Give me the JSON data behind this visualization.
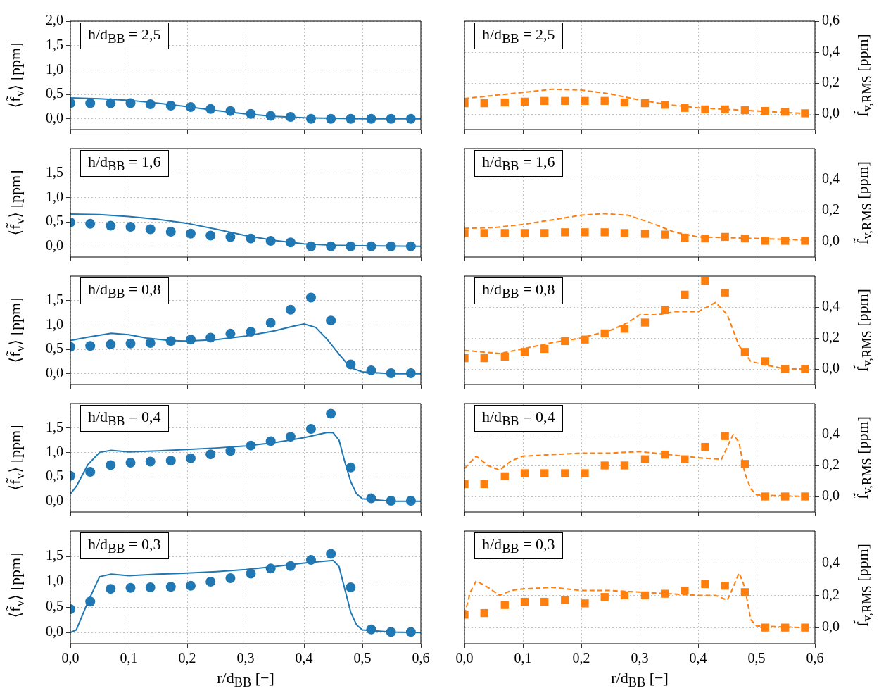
{
  "chart_data": [
    {
      "type": "scatter",
      "ylabel": "⟨f̃$_{v}$⟩ [ppm]",
      "annotations": [
        "h/d$_{BB}$ = 2,5"
      ],
      "xlim": [
        0,
        0.6
      ],
      "xticks": [
        {
          "value": 0,
          "label": null
        },
        {
          "value": 0.1,
          "label": null
        },
        {
          "value": 0.2,
          "label": null
        },
        {
          "value": 0.3,
          "label": null
        },
        {
          "value": 0.4,
          "label": null
        },
        {
          "value": 0.5,
          "label": null
        },
        {
          "value": 0.6,
          "label": null
        }
      ],
      "ylim": [
        -0.22,
        2.0
      ],
      "yticks": [
        {
          "value": 0,
          "label": "0,0"
        },
        {
          "value": 0.5,
          "label": "0,5"
        },
        {
          "value": 1,
          "label": "1,0"
        },
        {
          "value": 1.5,
          "label": "1,5"
        },
        {
          "value": 2,
          "label": "2,0"
        }
      ],
      "tick_labels": "y",
      "grid": true,
      "x": [
        0,
        0.034,
        0.069,
        0.103,
        0.137,
        0.172,
        0.206,
        0.24,
        0.274,
        0.309,
        0.343,
        0.377,
        0.412,
        0.446,
        0.48,
        0.515,
        0.549,
        0.583
      ],
      "series": [
        {
          "type": "scatter",
          "marker": "circle",
          "color": "#1f77b4",
          "values": [
            0.32,
            0.32,
            0.32,
            0.32,
            0.3,
            0.27,
            0.24,
            0.2,
            0.16,
            0.1,
            0.06,
            0.04,
            0,
            0,
            0,
            0,
            0,
            0
          ]
        },
        {
          "type": "line",
          "line_style": "solid",
          "color": "#1f77b4",
          "x": [
            0,
            0.05,
            0.1,
            0.15,
            0.2,
            0.25,
            0.3,
            0.35,
            0.4,
            0.45,
            0.5,
            0.6
          ],
          "values": [
            0.43,
            0.41,
            0.38,
            0.32,
            0.25,
            0.17,
            0.1,
            0.05,
            0.02,
            0.01,
            0,
            0
          ]
        }
      ]
    },
    {
      "type": "scatter",
      "y2label": "f̃$_{v,RMS}$ [ppm]",
      "annotations": [
        "h/d$_{BB}$ = 2,5"
      ],
      "xlim": [
        0,
        0.6
      ],
      "xticks": [
        {
          "value": 0,
          "label": null
        },
        {
          "value": 0.1,
          "label": null
        },
        {
          "value": 0.2,
          "label": null
        },
        {
          "value": 0.3,
          "label": null
        },
        {
          "value": 0.4,
          "label": null
        },
        {
          "value": 0.5,
          "label": null
        },
        {
          "value": 0.6,
          "label": null
        }
      ],
      "y2lim": [
        -0.1,
        0.6
      ],
      "y2ticks": [
        {
          "value": 0,
          "label": "0,0"
        },
        {
          "value": 0.2,
          "label": "0,2"
        },
        {
          "value": 0.4,
          "label": "0,4"
        },
        {
          "value": 0.6,
          "label": "0,6"
        }
      ],
      "tick_labels": "y",
      "grid": true,
      "x": [
        0,
        0.034,
        0.069,
        0.103,
        0.137,
        0.172,
        0.206,
        0.24,
        0.274,
        0.309,
        0.343,
        0.377,
        0.412,
        0.446,
        0.48,
        0.515,
        0.549,
        0.583
      ],
      "series": [
        {
          "type": "scatter",
          "axis": "y2",
          "marker": "square",
          "color": "#ff7f0e",
          "values": [
            0.07,
            0.07,
            0.075,
            0.08,
            0.085,
            0.085,
            0.085,
            0.085,
            0.075,
            0.07,
            0.06,
            0.04,
            0.03,
            0.03,
            0.025,
            0.02,
            0.015,
            0.005
          ]
        },
        {
          "type": "line",
          "axis": "y2",
          "line_style": "dashed",
          "color": "#ff7f0e",
          "x": [
            0,
            0.05,
            0.1,
            0.15,
            0.2,
            0.25,
            0.3,
            0.35,
            0.4,
            0.45,
            0.5,
            0.55,
            0.58
          ],
          "values": [
            0.1,
            0.12,
            0.14,
            0.16,
            0.155,
            0.13,
            0.09,
            0.06,
            0.04,
            0.03,
            0.02,
            0.01,
            0.005
          ]
        }
      ]
    },
    {
      "type": "scatter",
      "ylabel": "⟨f̃$_{v}$⟩ [ppm]",
      "annotations": [
        "h/d$_{BB}$ = 1,6"
      ],
      "xlim": [
        0,
        0.6
      ],
      "xticks": [
        {
          "value": 0,
          "label": null
        },
        {
          "value": 0.1,
          "label": null
        },
        {
          "value": 0.2,
          "label": null
        },
        {
          "value": 0.3,
          "label": null
        },
        {
          "value": 0.4,
          "label": null
        },
        {
          "value": 0.5,
          "label": null
        },
        {
          "value": 0.6,
          "label": null
        }
      ],
      "ylim": [
        -0.22,
        2.0
      ],
      "yticks": [
        {
          "value": 0,
          "label": "0,0"
        },
        {
          "value": 0.5,
          "label": "0,5"
        },
        {
          "value": 1,
          "label": "1,0"
        },
        {
          "value": 1.5,
          "label": "1,5"
        }
      ],
      "tick_labels": "y",
      "grid": true,
      "x": [
        0,
        0.034,
        0.069,
        0.103,
        0.137,
        0.172,
        0.206,
        0.24,
        0.274,
        0.309,
        0.343,
        0.377,
        0.412,
        0.446,
        0.48,
        0.515,
        0.549,
        0.583
      ],
      "series": [
        {
          "type": "scatter",
          "marker": "circle",
          "color": "#1f77b4",
          "values": [
            0.49,
            0.46,
            0.42,
            0.4,
            0.35,
            0.3,
            0.26,
            0.22,
            0.19,
            0.16,
            0.11,
            0.08,
            0,
            0,
            0,
            0,
            0,
            0
          ]
        },
        {
          "type": "line",
          "line_style": "solid",
          "color": "#1f77b4",
          "x": [
            0,
            0.05,
            0.1,
            0.15,
            0.2,
            0.25,
            0.3,
            0.35,
            0.4,
            0.45,
            0.5,
            0.6
          ],
          "values": [
            0.66,
            0.65,
            0.61,
            0.55,
            0.47,
            0.35,
            0.22,
            0.12,
            0.05,
            0.02,
            0.01,
            0
          ]
        }
      ]
    },
    {
      "type": "scatter",
      "y2label": "f̃$_{v,RMS}$ [ppm]",
      "annotations": [
        "h/d$_{BB}$ = 1,6"
      ],
      "xlim": [
        0,
        0.6
      ],
      "xticks": [
        {
          "value": 0,
          "label": null
        },
        {
          "value": 0.1,
          "label": null
        },
        {
          "value": 0.2,
          "label": null
        },
        {
          "value": 0.3,
          "label": null
        },
        {
          "value": 0.4,
          "label": null
        },
        {
          "value": 0.5,
          "label": null
        },
        {
          "value": 0.6,
          "label": null
        }
      ],
      "y2lim": [
        -0.1,
        0.6
      ],
      "y2ticks": [
        {
          "value": 0,
          "label": "0,0"
        },
        {
          "value": 0.2,
          "label": "0,2"
        },
        {
          "value": 0.4,
          "label": "0,4"
        }
      ],
      "tick_labels": "y",
      "grid": true,
      "x": [
        0,
        0.034,
        0.069,
        0.103,
        0.137,
        0.172,
        0.206,
        0.24,
        0.274,
        0.309,
        0.343,
        0.377,
        0.412,
        0.446,
        0.48,
        0.515,
        0.549,
        0.583
      ],
      "series": [
        {
          "type": "scatter",
          "axis": "y2",
          "marker": "square",
          "color": "#ff7f0e",
          "values": [
            0.055,
            0.055,
            0.055,
            0.055,
            0.055,
            0.06,
            0.06,
            0.06,
            0.055,
            0.05,
            0.045,
            0.025,
            0.02,
            0.03,
            0.02,
            0.005,
            0.005,
            0.005
          ]
        },
        {
          "type": "line",
          "axis": "y2",
          "line_style": "dashed",
          "color": "#ff7f0e",
          "x": [
            0,
            0.05,
            0.1,
            0.15,
            0.2,
            0.24,
            0.28,
            0.32,
            0.36,
            0.4,
            0.5,
            0.58
          ],
          "values": [
            0.085,
            0.09,
            0.11,
            0.14,
            0.17,
            0.18,
            0.17,
            0.12,
            0.06,
            0.03,
            0.02,
            0.01
          ]
        }
      ]
    },
    {
      "type": "scatter",
      "ylabel": "⟨f̃$_{v}$⟩ [ppm]",
      "annotations": [
        "h/d$_{BB}$ = 0,8"
      ],
      "xlim": [
        0,
        0.6
      ],
      "xticks": [
        {
          "value": 0,
          "label": null
        },
        {
          "value": 0.1,
          "label": null
        },
        {
          "value": 0.2,
          "label": null
        },
        {
          "value": 0.3,
          "label": null
        },
        {
          "value": 0.4,
          "label": null
        },
        {
          "value": 0.5,
          "label": null
        },
        {
          "value": 0.6,
          "label": null
        }
      ],
      "ylim": [
        -0.22,
        2.0
      ],
      "yticks": [
        {
          "value": 0,
          "label": "0,0"
        },
        {
          "value": 0.5,
          "label": "0,5"
        },
        {
          "value": 1,
          "label": "1,0"
        },
        {
          "value": 1.5,
          "label": "1,5"
        }
      ],
      "tick_labels": "y",
      "grid": true,
      "x": [
        0,
        0.034,
        0.069,
        0.103,
        0.137,
        0.172,
        0.206,
        0.24,
        0.274,
        0.309,
        0.343,
        0.377,
        0.412,
        0.446,
        0.48,
        0.515,
        0.549,
        0.583
      ],
      "series": [
        {
          "type": "scatter",
          "marker": "circle",
          "color": "#1f77b4",
          "values": [
            0.55,
            0.57,
            0.6,
            0.62,
            0.63,
            0.67,
            0.7,
            0.74,
            0.82,
            0.86,
            1.04,
            1.31,
            1.56,
            1.09,
            0.19,
            0.07,
            0.01,
            0.01
          ]
        },
        {
          "type": "line",
          "line_style": "solid",
          "color": "#1f77b4",
          "x": [
            0,
            0.03,
            0.07,
            0.1,
            0.13,
            0.17,
            0.2,
            0.25,
            0.3,
            0.35,
            0.38,
            0.4,
            0.42,
            0.44,
            0.46,
            0.48,
            0.5,
            0.55,
            0.6
          ],
          "values": [
            0.68,
            0.75,
            0.83,
            0.8,
            0.73,
            0.68,
            0.67,
            0.7,
            0.77,
            0.88,
            0.97,
            1.02,
            0.95,
            0.7,
            0.4,
            0.12,
            0.04,
            0,
            0
          ]
        }
      ]
    },
    {
      "type": "scatter",
      "y2label": "f̃$_{v,RMS}$ [ppm]",
      "annotations": [
        "h/d$_{BB}$ = 0,8"
      ],
      "xlim": [
        0,
        0.6
      ],
      "xticks": [
        {
          "value": 0,
          "label": null
        },
        {
          "value": 0.1,
          "label": null
        },
        {
          "value": 0.2,
          "label": null
        },
        {
          "value": 0.3,
          "label": null
        },
        {
          "value": 0.4,
          "label": null
        },
        {
          "value": 0.5,
          "label": null
        },
        {
          "value": 0.6,
          "label": null
        }
      ],
      "y2lim": [
        -0.1,
        0.6
      ],
      "y2ticks": [
        {
          "value": 0,
          "label": "0,0"
        },
        {
          "value": 0.2,
          "label": "0,2"
        },
        {
          "value": 0.4,
          "label": "0,4"
        }
      ],
      "tick_labels": "y",
      "grid": true,
      "x": [
        0,
        0.034,
        0.069,
        0.103,
        0.137,
        0.172,
        0.206,
        0.24,
        0.274,
        0.309,
        0.343,
        0.377,
        0.412,
        0.446,
        0.48,
        0.515,
        0.549,
        0.583
      ],
      "series": [
        {
          "type": "scatter",
          "axis": "y2",
          "marker": "square",
          "color": "#ff7f0e",
          "values": [
            0.07,
            0.07,
            0.08,
            0.11,
            0.13,
            0.18,
            0.19,
            0.23,
            0.26,
            0.3,
            0.38,
            0.48,
            0.57,
            0.49,
            0.11,
            0.05,
            0,
            0
          ]
        },
        {
          "type": "line",
          "axis": "y2",
          "line_style": "dashed",
          "color": "#ff7f0e",
          "x": [
            0,
            0.03,
            0.06,
            0.1,
            0.15,
            0.2,
            0.25,
            0.28,
            0.3,
            0.33,
            0.36,
            0.4,
            0.42,
            0.43,
            0.45,
            0.47,
            0.49,
            0.51,
            0.55,
            0.58
          ],
          "values": [
            0.12,
            0.11,
            0.1,
            0.13,
            0.17,
            0.2,
            0.25,
            0.3,
            0.35,
            0.35,
            0.37,
            0.37,
            0.41,
            0.43,
            0.35,
            0.15,
            0.05,
            0.03,
            0,
            0
          ]
        }
      ]
    },
    {
      "type": "scatter",
      "ylabel": "⟨f̃$_{v}$⟩ [ppm]",
      "annotations": [
        "h/d$_{BB}$ = 0,4"
      ],
      "xlim": [
        0,
        0.6
      ],
      "xticks": [
        {
          "value": 0,
          "label": null
        },
        {
          "value": 0.1,
          "label": null
        },
        {
          "value": 0.2,
          "label": null
        },
        {
          "value": 0.3,
          "label": null
        },
        {
          "value": 0.4,
          "label": null
        },
        {
          "value": 0.5,
          "label": null
        },
        {
          "value": 0.6,
          "label": null
        }
      ],
      "ylim": [
        -0.22,
        2.0
      ],
      "yticks": [
        {
          "value": 0,
          "label": "0,0"
        },
        {
          "value": 0.5,
          "label": "0,5"
        },
        {
          "value": 1,
          "label": "1,0"
        },
        {
          "value": 1.5,
          "label": "1,5"
        }
      ],
      "tick_labels": "y",
      "grid": true,
      "x": [
        0,
        0.034,
        0.069,
        0.103,
        0.137,
        0.172,
        0.206,
        0.24,
        0.274,
        0.309,
        0.343,
        0.377,
        0.412,
        0.446,
        0.48,
        0.515,
        0.549,
        0.583
      ],
      "series": [
        {
          "type": "scatter",
          "marker": "circle",
          "color": "#1f77b4",
          "values": [
            0.52,
            0.6,
            0.74,
            0.79,
            0.81,
            0.83,
            0.88,
            0.96,
            1.03,
            1.14,
            1.23,
            1.32,
            1.48,
            1.79,
            0.69,
            0.06,
            0.01,
            0.01
          ]
        },
        {
          "type": "line",
          "line_style": "solid",
          "color": "#1f77b4",
          "x": [
            0,
            0.01,
            0.03,
            0.05,
            0.07,
            0.1,
            0.15,
            0.2,
            0.25,
            0.3,
            0.35,
            0.4,
            0.44,
            0.45,
            0.46,
            0.47,
            0.48,
            0.49,
            0.5,
            0.55,
            0.6
          ],
          "values": [
            0.15,
            0.3,
            0.75,
            1.0,
            1.04,
            1.01,
            1.03,
            1.06,
            1.09,
            1.13,
            1.2,
            1.3,
            1.41,
            1.4,
            1.25,
            0.8,
            0.4,
            0.15,
            0.05,
            0,
            0
          ]
        }
      ]
    },
    {
      "type": "scatter",
      "y2label": "f̃$_{v,RMS}$ [ppm]",
      "annotations": [
        "h/d$_{BB}$ = 0,4"
      ],
      "xlim": [
        0,
        0.6
      ],
      "xticks": [
        {
          "value": 0,
          "label": null
        },
        {
          "value": 0.1,
          "label": null
        },
        {
          "value": 0.2,
          "label": null
        },
        {
          "value": 0.3,
          "label": null
        },
        {
          "value": 0.4,
          "label": null
        },
        {
          "value": 0.5,
          "label": null
        },
        {
          "value": 0.6,
          "label": null
        }
      ],
      "y2lim": [
        -0.1,
        0.6
      ],
      "y2ticks": [
        {
          "value": 0,
          "label": "0,0"
        },
        {
          "value": 0.2,
          "label": "0,2"
        },
        {
          "value": 0.4,
          "label": "0,4"
        }
      ],
      "tick_labels": "y",
      "grid": true,
      "x": [
        0,
        0.034,
        0.069,
        0.103,
        0.137,
        0.172,
        0.206,
        0.24,
        0.274,
        0.309,
        0.343,
        0.377,
        0.412,
        0.446,
        0.48,
        0.515,
        0.549,
        0.583
      ],
      "series": [
        {
          "type": "scatter",
          "axis": "y2",
          "marker": "square",
          "color": "#ff7f0e",
          "values": [
            0.08,
            0.08,
            0.13,
            0.15,
            0.15,
            0.15,
            0.15,
            0.2,
            0.2,
            0.24,
            0.27,
            0.24,
            0.32,
            0.39,
            0.21,
            0,
            0,
            0
          ]
        },
        {
          "type": "line",
          "axis": "y2",
          "line_style": "dashed",
          "color": "#ff7f0e",
          "x": [
            0,
            0.02,
            0.04,
            0.06,
            0.08,
            0.1,
            0.15,
            0.2,
            0.25,
            0.3,
            0.35,
            0.4,
            0.44,
            0.46,
            0.47,
            0.48,
            0.49,
            0.5,
            0.58
          ],
          "values": [
            0.18,
            0.26,
            0.2,
            0.17,
            0.23,
            0.26,
            0.27,
            0.28,
            0.28,
            0.29,
            0.27,
            0.25,
            0.24,
            0.4,
            0.35,
            0.15,
            0.05,
            0.01,
            0
          ]
        }
      ]
    },
    {
      "type": "scatter",
      "ylabel": "⟨f̃$_{v}$⟩ [ppm]",
      "xlabel": "r/d$_{BB}$ [−]",
      "annotations": [
        "h/d$_{BB}$ = 0,3"
      ],
      "xlim": [
        0,
        0.6
      ],
      "xticks": [
        {
          "value": 0,
          "label": "0,0"
        },
        {
          "value": 0.1,
          "label": "0,1"
        },
        {
          "value": 0.2,
          "label": "0,2"
        },
        {
          "value": 0.3,
          "label": "0,3"
        },
        {
          "value": 0.4,
          "label": "0,4"
        },
        {
          "value": 0.5,
          "label": "0,5"
        },
        {
          "value": 0.6,
          "label": "0,6"
        }
      ],
      "ylim": [
        -0.22,
        2.0
      ],
      "yticks": [
        {
          "value": 0,
          "label": "0,0"
        },
        {
          "value": 0.5,
          "label": "0,5"
        },
        {
          "value": 1,
          "label": "1,0"
        },
        {
          "value": 1.5,
          "label": "1,5"
        }
      ],
      "grid": true,
      "x": [
        0,
        0.034,
        0.069,
        0.103,
        0.137,
        0.172,
        0.206,
        0.24,
        0.274,
        0.309,
        0.343,
        0.377,
        0.412,
        0.446,
        0.48,
        0.515,
        0.549,
        0.583
      ],
      "series": [
        {
          "type": "scatter",
          "marker": "circle",
          "color": "#1f77b4",
          "values": [
            0.46,
            0.61,
            0.86,
            0.88,
            0.89,
            0.9,
            0.92,
            1.0,
            1.07,
            1.16,
            1.26,
            1.31,
            1.43,
            1.55,
            0.89,
            0.06,
            0.01,
            0.01
          ]
        },
        {
          "type": "line",
          "line_style": "solid",
          "color": "#1f77b4",
          "x": [
            0,
            0.01,
            0.03,
            0.05,
            0.07,
            0.1,
            0.15,
            0.2,
            0.25,
            0.3,
            0.35,
            0.4,
            0.45,
            0.46,
            0.47,
            0.48,
            0.49,
            0.5,
            0.55,
            0.6
          ],
          "values": [
            0,
            0.05,
            0.6,
            1.1,
            1.15,
            1.12,
            1.15,
            1.17,
            1.2,
            1.24,
            1.3,
            1.37,
            1.42,
            1.3,
            0.85,
            0.4,
            0.15,
            0.05,
            0.01,
            0
          ]
        }
      ]
    },
    {
      "type": "scatter",
      "y2label": "f̃$_{v,RMS}$ [ppm]",
      "xlabel": "r/d$_{BB}$ [−]",
      "annotations": [
        "h/d$_{BB}$ = 0,3"
      ],
      "xlim": [
        0,
        0.6
      ],
      "xticks": [
        {
          "value": 0,
          "label": "0,0"
        },
        {
          "value": 0.1,
          "label": "0,1"
        },
        {
          "value": 0.2,
          "label": "0,2"
        },
        {
          "value": 0.3,
          "label": "0,3"
        },
        {
          "value": 0.4,
          "label": "0,4"
        },
        {
          "value": 0.5,
          "label": "0,5"
        },
        {
          "value": 0.6,
          "label": "0,6"
        }
      ],
      "y2lim": [
        -0.1,
        0.6
      ],
      "y2ticks": [
        {
          "value": 0,
          "label": "0,0"
        },
        {
          "value": 0.2,
          "label": "0,2"
        },
        {
          "value": 0.4,
          "label": "0,4"
        }
      ],
      "grid": true,
      "x": [
        0,
        0.034,
        0.069,
        0.103,
        0.137,
        0.172,
        0.206,
        0.24,
        0.274,
        0.309,
        0.343,
        0.377,
        0.412,
        0.446,
        0.48,
        0.515,
        0.549,
        0.583
      ],
      "series": [
        {
          "type": "scatter",
          "axis": "y2",
          "marker": "square",
          "color": "#ff7f0e",
          "values": [
            0.08,
            0.09,
            0.14,
            0.16,
            0.16,
            0.17,
            0.15,
            0.19,
            0.2,
            0.2,
            0.21,
            0.23,
            0.27,
            0.26,
            0.22,
            0,
            0,
            0
          ]
        },
        {
          "type": "line",
          "axis": "y2",
          "line_style": "dashed",
          "color": "#ff7f0e",
          "x": [
            0,
            0.01,
            0.02,
            0.04,
            0.06,
            0.08,
            0.1,
            0.15,
            0.2,
            0.25,
            0.3,
            0.35,
            0.4,
            0.43,
            0.45,
            0.46,
            0.47,
            0.48,
            0.49,
            0.5,
            0.58
          ],
          "values": [
            0.08,
            0.22,
            0.29,
            0.25,
            0.2,
            0.23,
            0.24,
            0.25,
            0.23,
            0.23,
            0.22,
            0.21,
            0.2,
            0.2,
            0.17,
            0.25,
            0.34,
            0.25,
            0.05,
            0.01,
            0
          ]
        }
      ]
    }
  ]
}
